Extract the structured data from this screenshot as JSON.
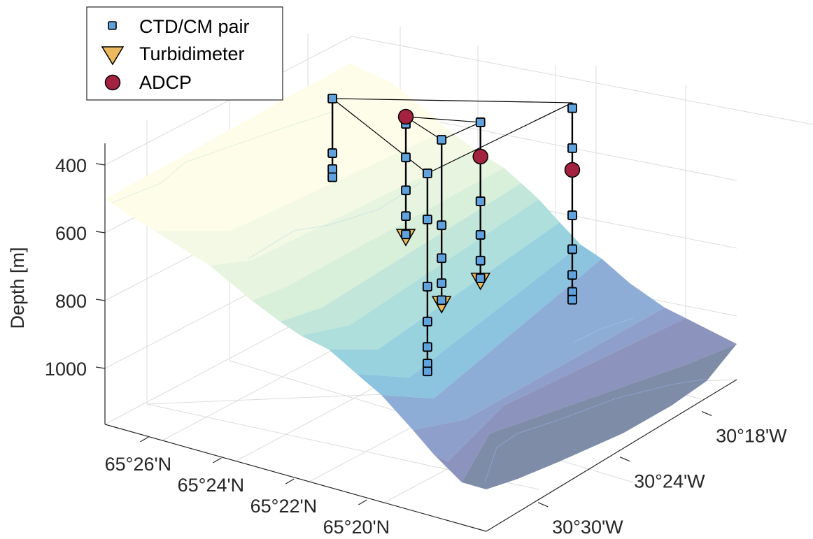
{
  "chart_data": {
    "type": "scatter3d",
    "title": "",
    "zlabel": "Depth [m]",
    "xlabel": "",
    "ylabel": "",
    "zlim": [
      300,
      1165
    ],
    "z_reversed": true,
    "z_ticks": [
      400,
      600,
      800,
      1000
    ],
    "z_tick_labels": [
      "400",
      "600",
      "800",
      "1000"
    ],
    "lat_ticks_min": [
      26,
      24,
      22,
      20
    ],
    "lat_tick_labels": [
      "65°26'N",
      "65°24'N",
      "65°22'N",
      "65°20'N"
    ],
    "lon_ticks_min": [
      30,
      24,
      18
    ],
    "lon_tick_labels": [
      "30°30'W",
      "30°24'W",
      "30°18'W"
    ],
    "grid": true,
    "legend": {
      "placement": "top-left",
      "entries": [
        {
          "key": "ctd",
          "label": "CTD/CM pair",
          "marker": "square",
          "color": "#5fa2dd"
        },
        {
          "key": "turb",
          "label": "Turbidimeter",
          "marker": "triangle-down",
          "color": "#edb95e"
        },
        {
          "key": "adcp",
          "label": "ADCP",
          "marker": "circle",
          "color": "#a3223f"
        }
      ]
    },
    "bathymetry_colormap": [
      "#fefde9",
      "#f3f8e4",
      "#e6f4df",
      "#d6eed9",
      "#c2e6db",
      "#acdedd",
      "#99d2df",
      "#8cc4df",
      "#8dadd6",
      "#8f9fcc",
      "#8c95bf",
      "#7f8ca8"
    ],
    "moorings": [
      {
        "id": "A",
        "lat_min": 24.15,
        "lon_min": 25.26,
        "ctd_depths": [
          300,
          461,
          508,
          532
        ],
        "turb_depths": [],
        "adcp_depths": []
      },
      {
        "id": "B",
        "lat_min": 22.23,
        "lon_min": 25.0,
        "ctd_depths": [
          321,
          420,
          517,
          593,
          647
        ],
        "turb_depths": [
          657
        ],
        "adcp_depths": [
          300
        ]
      },
      {
        "id": "C",
        "lat_min": 20.83,
        "lon_min": 26.11,
        "ctd_depths": [
          300,
          552,
          649,
          723,
          773
        ],
        "turb_depths": [
          787
        ],
        "adcp_depths": []
      },
      {
        "id": "D",
        "lat_min": 20.7,
        "lon_min": 23.61,
        "ctd_depths": [
          300,
          533,
          632,
          708,
          760
        ],
        "turb_depths": [
          770
        ],
        "adcp_depths": [
          401
        ]
      },
      {
        "id": "E",
        "lat_min": 19.99,
        "lon_min": 29.39,
        "ctd_depths": [
          300,
          436,
          634,
          737,
          812,
          861,
          884
        ],
        "turb_depths": [],
        "adcp_depths": []
      },
      {
        "id": "F",
        "lat_min": 19.68,
        "lon_min": 19.6,
        "ctd_depths": [
          316,
          434,
          632,
          732,
          808,
          858,
          881
        ],
        "turb_depths": [],
        "adcp_depths": [
          498
        ]
      }
    ],
    "connections": [
      [
        "A",
        "F"
      ],
      [
        "A",
        "E"
      ],
      [
        "B",
        "C"
      ],
      [
        "B",
        "D"
      ],
      [
        "C",
        "D"
      ],
      [
        "E",
        "F"
      ]
    ],
    "connection_depth": 300
  }
}
